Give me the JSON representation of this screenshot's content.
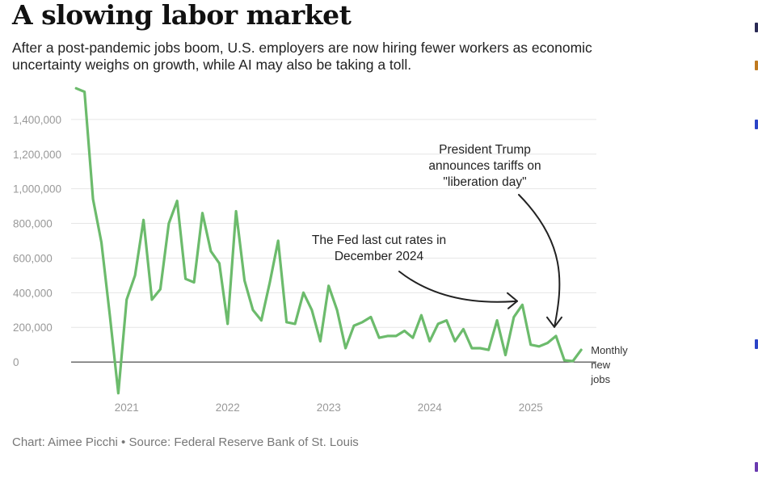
{
  "header": {
    "title": "A slowing labor market",
    "subtitle": "After a post-pandemic jobs boom, U.S. employers are now hiring fewer workers as economic uncertainty weighs on growth, while AI may also be taking a toll."
  },
  "footer": {
    "source": "Chart: Aimee Picchi • Source: Federal Reserve Bank of St. Louis"
  },
  "colors": {
    "line": "#6cbb6c",
    "grid": "#e6e6e6",
    "zero_line": "#222222",
    "tick_text": "#999999",
    "annotation": "#222222",
    "edge_marks": [
      "#2a2a55",
      "#c07a20",
      "#2b44c7",
      "#2b44c7",
      "#6a3ab0"
    ]
  },
  "chart_data": {
    "type": "line",
    "title": "A slowing labor market",
    "series": [
      {
        "name": "Monthly new jobs",
        "label_lines": [
          "Monthly",
          "new",
          "jobs"
        ],
        "x": [
          2020.5,
          2020.583,
          2020.667,
          2020.75,
          2020.833,
          2020.917,
          2021.0,
          2021.083,
          2021.167,
          2021.25,
          2021.333,
          2021.417,
          2021.5,
          2021.583,
          2021.667,
          2021.75,
          2021.833,
          2021.917,
          2022.0,
          2022.083,
          2022.167,
          2022.25,
          2022.333,
          2022.417,
          2022.5,
          2022.583,
          2022.667,
          2022.75,
          2022.833,
          2022.917,
          2023.0,
          2023.083,
          2023.167,
          2023.25,
          2023.333,
          2023.417,
          2023.5,
          2023.583,
          2023.667,
          2023.75,
          2023.833,
          2023.917,
          2024.0,
          2024.083,
          2024.167,
          2024.25,
          2024.333,
          2024.417,
          2024.5,
          2024.583,
          2024.667,
          2024.75,
          2024.833,
          2024.917,
          2025.0,
          2025.083,
          2025.167,
          2025.25,
          2025.333,
          2025.417,
          2025.5
        ],
        "values": [
          1580000,
          1560000,
          940000,
          690000,
          270000,
          -180000,
          360000,
          500000,
          820000,
          360000,
          420000,
          800000,
          930000,
          480000,
          460000,
          860000,
          640000,
          570000,
          220000,
          870000,
          470000,
          300000,
          240000,
          460000,
          700000,
          230000,
          220000,
          400000,
          300000,
          120000,
          440000,
          300000,
          80000,
          210000,
          230000,
          260000,
          140000,
          150000,
          150000,
          180000,
          140000,
          270000,
          120000,
          220000,
          240000,
          120000,
          190000,
          80000,
          80000,
          70000,
          240000,
          40000,
          260000,
          330000,
          100000,
          90000,
          110000,
          150000,
          10000,
          5000,
          70000
        ]
      }
    ],
    "x_ticks": [
      2021,
      2022,
      2023,
      2024,
      2025
    ],
    "x_tick_labels": [
      "2021",
      "2022",
      "2023",
      "2024",
      "2025"
    ],
    "y_ticks": [
      0,
      200000,
      400000,
      600000,
      800000,
      1000000,
      1200000,
      1400000
    ],
    "y_tick_labels": [
      "0",
      "200,000",
      "400,000",
      "600,000",
      "800,000",
      "1,000,000",
      "1,200,000",
      "1,400,000"
    ],
    "xlim": [
      2020.45,
      2025.65
    ],
    "ylim": [
      -200000,
      1600000
    ],
    "grid": true,
    "xlabel": "",
    "ylabel": "",
    "annotations": [
      {
        "lines": [
          "The Fed last cut rates in",
          "December 2024"
        ],
        "target_x": 2024.917,
        "target_y": 370000
      },
      {
        "lines": [
          "President Trump",
          "announces tariffs on",
          "\"liberation day\""
        ],
        "target_x": 2025.25,
        "target_y": 230000
      }
    ]
  }
}
